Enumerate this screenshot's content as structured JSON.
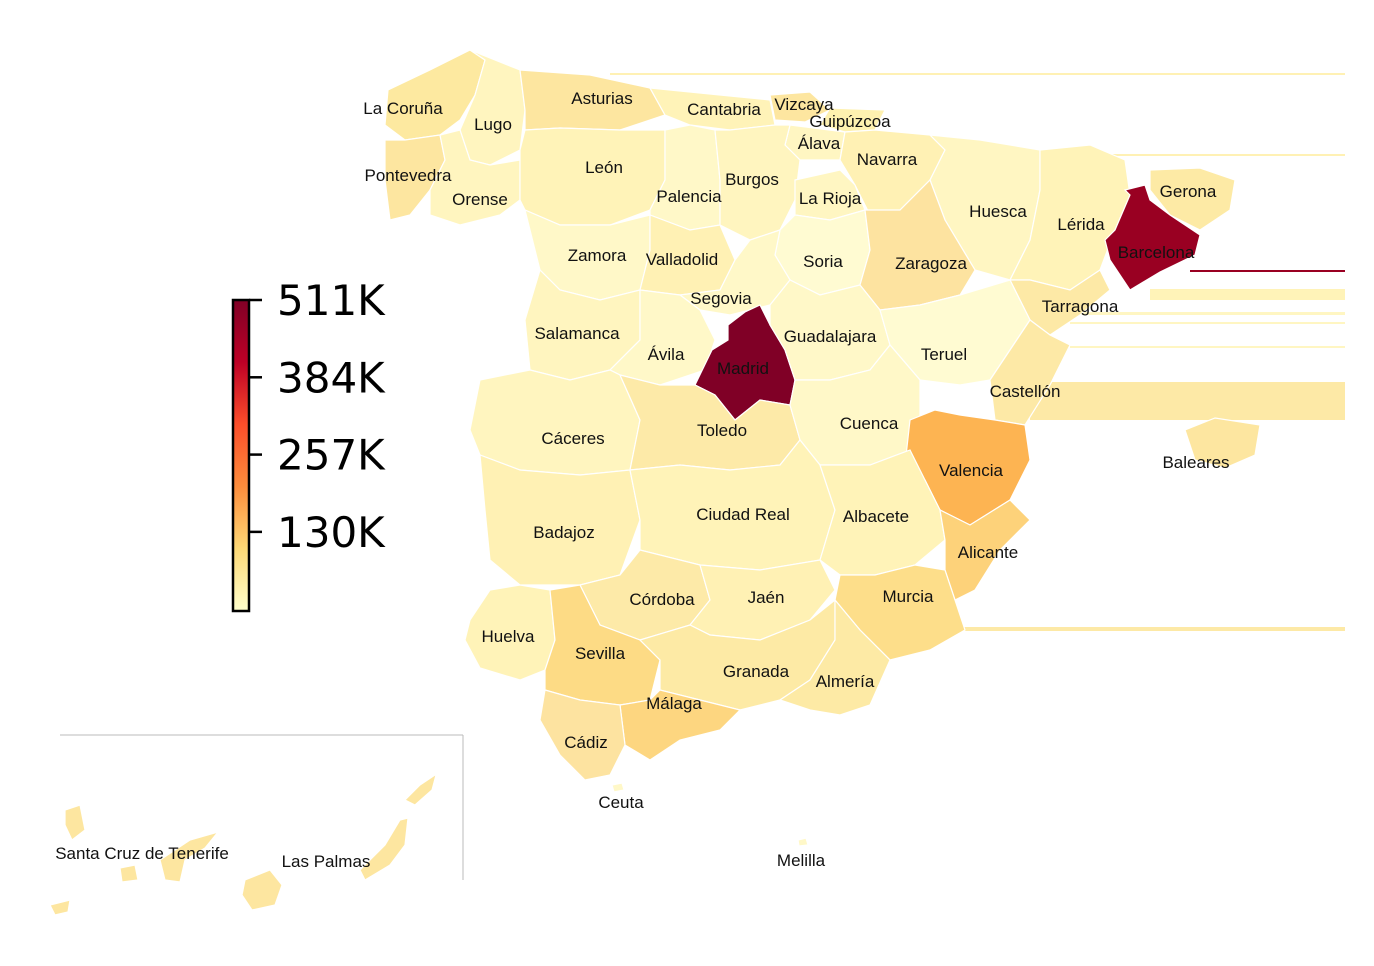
{
  "colors": {
    "background": "#ffffff",
    "scale": [
      "#ffffcc",
      "#ffeda0",
      "#fed976",
      "#feb24c",
      "#fd8d3c",
      "#fc4e2a",
      "#e31a1c",
      "#bd0026",
      "#800026"
    ]
  },
  "colorbar": {
    "ticks": [
      "511K",
      "384K",
      "257K",
      "130K"
    ],
    "tick_values": [
      511000,
      384000,
      257000,
      130000
    ]
  },
  "provinces": [
    {
      "id": "la-coruna",
      "label": "La Coruña",
      "color": "#fde9a0"
    },
    {
      "id": "lugo",
      "label": "Lugo",
      "color": "#fff5bf"
    },
    {
      "id": "asturias",
      "label": "Asturias",
      "color": "#fde6a0"
    },
    {
      "id": "cantabria",
      "label": "Cantabria",
      "color": "#fff3b8"
    },
    {
      "id": "vizcaya",
      "label": "Vizcaya",
      "color": "#fde6a0"
    },
    {
      "id": "guipuzcoa",
      "label": "Guipúzcoa",
      "color": "#fef1b0"
    },
    {
      "id": "alava",
      "label": "Álava",
      "color": "#fff6c2"
    },
    {
      "id": "navarra",
      "label": "Navarra",
      "color": "#fff1b4"
    },
    {
      "id": "pontevedra",
      "label": "Pontevedra",
      "color": "#fde6a0"
    },
    {
      "id": "orense",
      "label": "Orense",
      "color": "#fff5bf"
    },
    {
      "id": "leon",
      "label": "León",
      "color": "#fff3b8"
    },
    {
      "id": "palencia",
      "label": "Palencia",
      "color": "#fff8c8"
    },
    {
      "id": "burgos",
      "label": "Burgos",
      "color": "#fff5bf"
    },
    {
      "id": "la-rioja",
      "label": "La Rioja",
      "color": "#fff6c2"
    },
    {
      "id": "huesca",
      "label": "Huesca",
      "color": "#fff6c2"
    },
    {
      "id": "gerona",
      "label": "Gerona",
      "color": "#fdeaa5"
    },
    {
      "id": "lerida",
      "label": "Lérida",
      "color": "#fff3b8"
    },
    {
      "id": "barcelona",
      "label": "Barcelona",
      "color": "#990022"
    },
    {
      "id": "zamora",
      "label": "Zamora",
      "color": "#fff8c8"
    },
    {
      "id": "valladolid",
      "label": "Valladolid",
      "color": "#fff1b4"
    },
    {
      "id": "soria",
      "label": "Soria",
      "color": "#fffbd2"
    },
    {
      "id": "zaragoza",
      "label": "Zaragoza",
      "color": "#fde3a0"
    },
    {
      "id": "segovia",
      "label": "Segovia",
      "color": "#fff8c8"
    },
    {
      "id": "tarragona",
      "label": "Tarragona",
      "color": "#fde9a6"
    },
    {
      "id": "salamanca",
      "label": "Salamanca",
      "color": "#fff5bf"
    },
    {
      "id": "avila",
      "label": "Ávila",
      "color": "#fff8c8"
    },
    {
      "id": "madrid",
      "label": "Madrid",
      "color": "#800026"
    },
    {
      "id": "guadalajara",
      "label": "Guadalajara",
      "color": "#fff8c8"
    },
    {
      "id": "teruel",
      "label": "Teruel",
      "color": "#fffbd2"
    },
    {
      "id": "castellon",
      "label": "Castellón",
      "color": "#fde9a6"
    },
    {
      "id": "caceres",
      "label": "Cáceres",
      "color": "#fff5bf"
    },
    {
      "id": "toledo",
      "label": "Toledo",
      "color": "#fdeaa8"
    },
    {
      "id": "cuenca",
      "label": "Cuenca",
      "color": "#fff8c8"
    },
    {
      "id": "valencia",
      "label": "Valencia",
      "color": "#fdb452"
    },
    {
      "id": "baleares",
      "label": "Baleares",
      "color": "#fde6a0"
    },
    {
      "id": "badajoz",
      "label": "Badajoz",
      "color": "#fff1b4"
    },
    {
      "id": "ciudad-real",
      "label": "Ciudad Real",
      "color": "#fff3b8"
    },
    {
      "id": "albacete",
      "label": "Albacete",
      "color": "#fff3b8"
    },
    {
      "id": "alicante",
      "label": "Alicante",
      "color": "#fdd27a"
    },
    {
      "id": "huelva",
      "label": "Huelva",
      "color": "#fff3b8"
    },
    {
      "id": "cordoba",
      "label": "Córdoba",
      "color": "#fdeaa8"
    },
    {
      "id": "jaen",
      "label": "Jaén",
      "color": "#fff1b4"
    },
    {
      "id": "murcia",
      "label": "Murcia",
      "color": "#fdde8a"
    },
    {
      "id": "sevilla",
      "label": "Sevilla",
      "color": "#fddb85"
    },
    {
      "id": "granada",
      "label": "Granada",
      "color": "#fdeaa5"
    },
    {
      "id": "almeria",
      "label": "Almería",
      "color": "#fdeaa5"
    },
    {
      "id": "malaga",
      "label": "Málaga",
      "color": "#fdd680"
    },
    {
      "id": "cadiz",
      "label": "Cádiz",
      "color": "#fde3a0"
    },
    {
      "id": "ceuta",
      "label": "Ceuta",
      "color": "#fff8c8"
    },
    {
      "id": "melilla",
      "label": "Melilla",
      "color": "#fff8c8"
    },
    {
      "id": "santa-cruz",
      "label": "Santa Cruz de Tenerife",
      "color": "#fde6a0"
    },
    {
      "id": "las-palmas",
      "label": "Las Palmas",
      "color": "#fde6a0"
    }
  ]
}
